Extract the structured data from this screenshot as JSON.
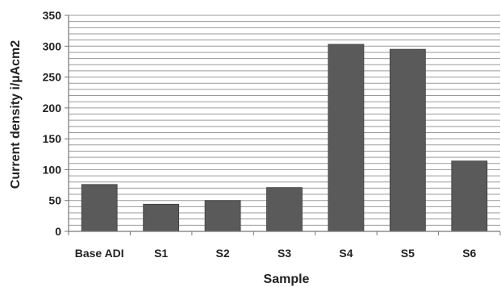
{
  "chart_data": {
    "type": "bar",
    "title": "",
    "xlabel": "Sample",
    "ylabel": "Current density i/µAcm2",
    "categories": [
      "Base ADI",
      "S1",
      "S2",
      "S3",
      "S4",
      "S5",
      "S6"
    ],
    "values": [
      76,
      44,
      50,
      71,
      303,
      295,
      114
    ],
    "ylim": [
      0,
      350
    ],
    "yticks": [
      0,
      50,
      100,
      150,
      200,
      250,
      300,
      350
    ],
    "grid": true,
    "legend": "none",
    "colors": {
      "bar": "#5a5a5a",
      "grid": "#9a9a9a",
      "axis": "#777777",
      "text": "#222222"
    }
  }
}
